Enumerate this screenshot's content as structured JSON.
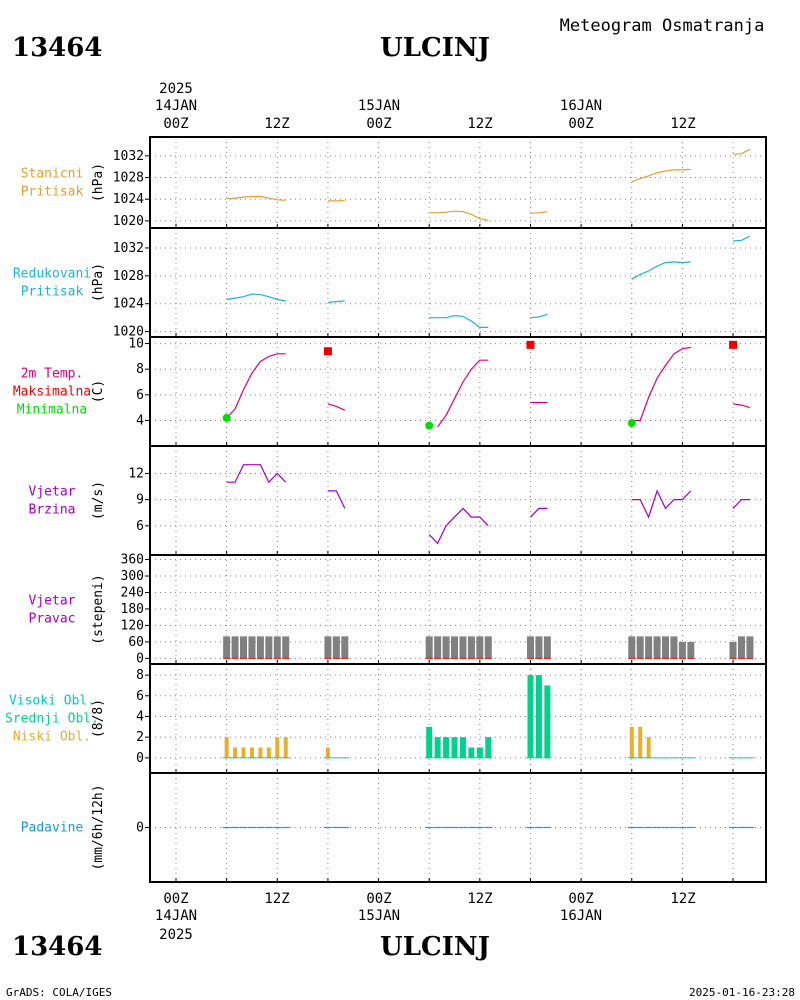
{
  "header": {
    "station_id": "13464",
    "station_name": "ULCINJ",
    "subtitle": "Meteogram Osmatranja"
  },
  "footer": {
    "credit": "GrADS: COLA/IGES",
    "generated": "2025-01-16-23:28"
  },
  "time_axis": {
    "year": "2025",
    "day_labels": [
      "14JAN",
      "15JAN",
      "16JAN"
    ],
    "hour_labels": [
      "00Z",
      "12Z",
      "00Z",
      "12Z",
      "00Z",
      "12Z"
    ]
  },
  "colors": {
    "pressure_station": "#e1a032",
    "pressure_reduced": "#1eb4d2",
    "temperature": "#dc0080",
    "temp_max": "#f00000",
    "temp_min": "#00dc00",
    "wind": "#a000c8",
    "wind_dir_bar": "#808080",
    "high_clouds": "#00c8c8",
    "mid_clouds": "#00d28c",
    "low_clouds": "#e6af2d",
    "precip": "#1e96dc"
  },
  "chart_data": [
    {
      "type": "line",
      "panel_label": [
        "Stanicni",
        "Pritisak"
      ],
      "ylabel": "(hPa)",
      "ylim": [
        1019.8,
        1034
      ],
      "yticks": [
        1020,
        1024,
        1028,
        1032
      ],
      "x_unit": "hours since 14JAN 00Z",
      "segments": [
        {
          "x": [
            6,
            7,
            8,
            9,
            10,
            11,
            12,
            13
          ],
          "values": [
            1024.1,
            1024.2,
            1024.4,
            1024.5,
            1024.5,
            1024.2,
            1023.9,
            1023.8
          ]
        },
        {
          "x": [
            18,
            19,
            20
          ],
          "values": [
            1023.7,
            1023.7,
            1023.8
          ]
        },
        {
          "x": [
            30,
            31,
            32,
            33,
            34,
            35,
            36,
            37
          ],
          "values": [
            1021.5,
            1021.5,
            1021.6,
            1021.8,
            1021.7,
            1021.2,
            1020.4,
            1020.1
          ]
        },
        {
          "x": [
            42,
            43,
            44
          ],
          "values": [
            1021.4,
            1021.5,
            1021.7
          ]
        },
        {
          "x": [
            54,
            55,
            56,
            57,
            58,
            59,
            60,
            61
          ],
          "values": [
            1027.2,
            1027.8,
            1028.3,
            1028.9,
            1029.2,
            1029.4,
            1029.4,
            1029.5
          ]
        },
        {
          "x": [
            66,
            67,
            68
          ],
          "values": [
            1032.3,
            1032.4,
            1033.2
          ]
        }
      ]
    },
    {
      "type": "line",
      "panel_label": [
        "Redukovani",
        "Pritisak"
      ],
      "ylabel": "(hPa)",
      "ylim": [
        1019.8,
        1034
      ],
      "yticks": [
        1020,
        1024,
        1028,
        1032
      ],
      "x_unit": "hours since 14JAN 00Z",
      "segments": [
        {
          "x": [
            6,
            7,
            8,
            9,
            10,
            11,
            12,
            13
          ],
          "values": [
            1024.6,
            1024.8,
            1025.0,
            1025.4,
            1025.3,
            1025.0,
            1024.6,
            1024.4
          ]
        },
        {
          "x": [
            18,
            19,
            20
          ],
          "values": [
            1024.2,
            1024.3,
            1024.4
          ]
        },
        {
          "x": [
            30,
            31,
            32,
            33,
            34,
            35,
            36,
            37
          ],
          "values": [
            1022.0,
            1022.0,
            1022.0,
            1022.3,
            1022.2,
            1021.5,
            1020.6,
            1020.6
          ]
        },
        {
          "x": [
            42,
            43,
            44
          ],
          "values": [
            1022.0,
            1022.1,
            1022.5
          ]
        },
        {
          "x": [
            54,
            55,
            56,
            57,
            58,
            59,
            60,
            61
          ],
          "values": [
            1027.5,
            1028.2,
            1028.7,
            1029.4,
            1029.9,
            1030.0,
            1029.9,
            1030.0
          ]
        },
        {
          "x": [
            66,
            67,
            68
          ],
          "values": [
            1033.0,
            1033.1,
            1033.7
          ]
        }
      ]
    },
    {
      "type": "line",
      "panel_label": [
        "2m Temp.",
        "Maksimalna",
        "Minimalna"
      ],
      "ylabel": "(C)",
      "ylim": [
        3.1,
        10.2
      ],
      "yticks": [
        4,
        6,
        8,
        10
      ],
      "x_unit": "hours since 14JAN 00Z",
      "segments": [
        {
          "x": [
            6,
            7,
            8,
            9,
            10,
            11,
            12,
            13
          ],
          "values": [
            4.2,
            4.9,
            6.4,
            7.7,
            8.6,
            9.0,
            9.2,
            9.2
          ]
        },
        {
          "x": [
            18,
            19,
            20
          ],
          "values": [
            5.3,
            5.1,
            4.8
          ]
        },
        {
          "x": [
            31,
            32,
            33,
            34,
            35,
            36,
            37
          ],
          "values": [
            3.5,
            4.4,
            5.7,
            7.0,
            8.0,
            8.7,
            8.7
          ]
        },
        {
          "x": [
            42,
            43,
            44
          ],
          "values": [
            5.4,
            5.4,
            5.4
          ]
        },
        {
          "x": [
            54,
            55,
            56,
            57,
            58,
            59,
            60,
            61
          ],
          "values": [
            4.0,
            4.0,
            5.8,
            7.3,
            8.3,
            9.2,
            9.6,
            9.7
          ]
        },
        {
          "x": [
            66,
            67,
            68
          ],
          "values": [
            5.3,
            5.2,
            5.0
          ]
        }
      ],
      "maxima": {
        "x": [
          18,
          42,
          66
        ],
        "values": [
          9.4,
          9.9,
          9.9
        ]
      },
      "minima": {
        "x": [
          6,
          30,
          54
        ],
        "values": [
          4.2,
          3.6,
          3.8
        ]
      }
    },
    {
      "type": "line",
      "panel_label": [
        "Vjetar",
        "Brzina"
      ],
      "ylabel": "(m/s)",
      "ylim": [
        3.8,
        14
      ],
      "yticks": [
        6,
        9,
        12
      ],
      "x_unit": "hours since 14JAN 00Z",
      "segments": [
        {
          "x": [
            6,
            7,
            8,
            9,
            10,
            11,
            12,
            13
          ],
          "values": [
            11,
            11,
            13,
            13,
            13,
            11,
            12,
            11
          ]
        },
        {
          "x": [
            18,
            19,
            20
          ],
          "values": [
            10,
            10,
            8
          ]
        },
        {
          "x": [
            30,
            31,
            32,
            33,
            34,
            35,
            36,
            37
          ],
          "values": [
            5,
            4,
            6,
            7,
            8,
            7,
            7,
            6
          ]
        },
        {
          "x": [
            42,
            43,
            44
          ],
          "values": [
            7,
            8,
            8
          ]
        },
        {
          "x": [
            54,
            55,
            56,
            57,
            58,
            59,
            60,
            61
          ],
          "values": [
            9,
            9,
            7,
            10,
            8,
            9,
            9,
            10
          ]
        },
        {
          "x": [
            66,
            67,
            68
          ],
          "values": [
            8,
            9,
            9
          ]
        }
      ]
    },
    {
      "type": "bar",
      "panel_label": [
        "Vjetar",
        "Pravac"
      ],
      "ylabel": "(stepeni)",
      "ylim": [
        -6,
        362
      ],
      "yticks": [
        0,
        60,
        120,
        180,
        240,
        300,
        360
      ],
      "x_unit": "hours since 14JAN 00Z",
      "x": [
        6,
        7,
        8,
        9,
        10,
        11,
        12,
        13,
        18,
        19,
        20,
        30,
        31,
        32,
        33,
        34,
        35,
        36,
        37,
        42,
        43,
        44,
        54,
        55,
        56,
        57,
        58,
        59,
        60,
        61,
        66,
        67,
        68
      ],
      "values": [
        80,
        80,
        80,
        80,
        80,
        80,
        80,
        80,
        80,
        80,
        80,
        80,
        80,
        80,
        80,
        80,
        80,
        80,
        80,
        80,
        80,
        80,
        80,
        80,
        80,
        80,
        80,
        80,
        60,
        60,
        60,
        80,
        80
      ]
    },
    {
      "type": "bar",
      "panel_label": [
        "Visoki Obl.",
        "Srednji Obl.",
        "Niski Obl."
      ],
      "ylabel": "(8/8)",
      "ylim": [
        -0.5,
        8.3
      ],
      "yticks": [
        0,
        2,
        4,
        6,
        8
      ],
      "x_unit": "hours since 14JAN 00Z",
      "x": [
        6,
        7,
        8,
        9,
        10,
        11,
        12,
        13,
        18,
        19,
        20,
        30,
        31,
        32,
        33,
        34,
        35,
        36,
        37,
        42,
        43,
        44,
        54,
        55,
        56,
        57,
        58,
        59,
        60,
        61,
        66,
        67,
        68
      ],
      "series": [
        {
          "key": "low",
          "values": [
            2,
            1,
            1,
            1,
            1,
            1,
            2,
            2,
            1,
            0,
            0,
            0,
            0,
            0,
            0,
            0,
            0,
            0,
            0,
            0,
            0,
            0,
            3,
            3,
            2,
            0,
            0,
            0,
            0,
            0,
            0,
            0,
            0
          ]
        },
        {
          "key": "mid",
          "values": [
            0,
            0,
            0,
            0,
            0,
            0,
            0,
            0,
            0,
            0,
            0,
            3,
            2,
            2,
            2,
            2,
            1,
            1,
            2,
            8,
            8,
            7,
            0,
            0,
            0,
            0,
            0,
            0,
            0,
            0,
            0,
            0,
            0
          ]
        }
      ]
    },
    {
      "type": "bar",
      "panel_label": [
        "Padavine"
      ],
      "ylabel": "(mm/6h/12h)",
      "ylim": [
        -6,
        6
      ],
      "yticks": [
        0
      ],
      "x_unit": "hours since 14JAN 00Z",
      "x": [
        6,
        7,
        8,
        9,
        10,
        11,
        12,
        13,
        18,
        19,
        20,
        30,
        31,
        32,
        33,
        34,
        35,
        36,
        37,
        42,
        43,
        44,
        54,
        55,
        56,
        57,
        58,
        59,
        60,
        61,
        66,
        67,
        68
      ],
      "values": [
        0,
        0,
        0,
        0,
        0,
        0,
        0,
        0,
        0,
        0,
        0,
        0,
        0,
        0,
        0,
        0,
        0,
        0,
        0,
        0,
        0,
        0,
        0,
        0,
        0,
        0,
        0,
        0,
        0,
        0,
        0,
        0,
        0
      ]
    }
  ]
}
